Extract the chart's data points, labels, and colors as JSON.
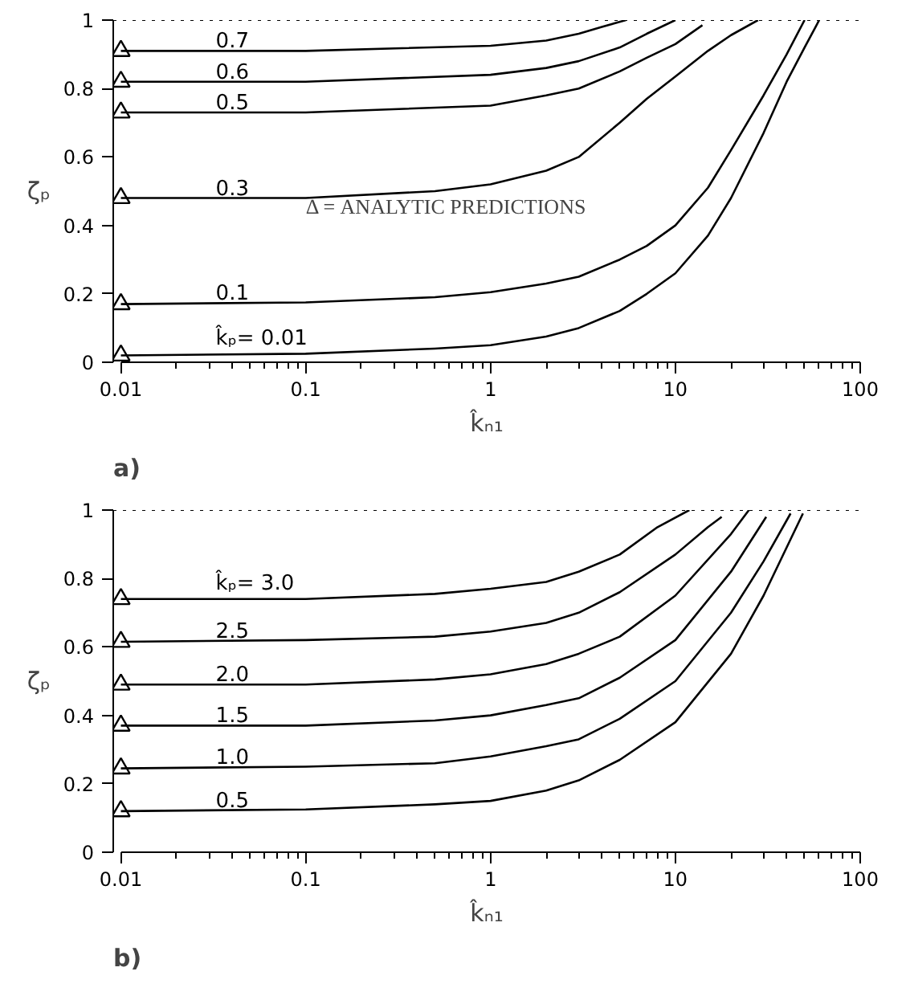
{
  "chart_data": [
    {
      "type": "line",
      "title": "a)",
      "xlabel": "k̂ₙ₁",
      "ylabel": "ζₚ",
      "log": "x",
      "grid": false,
      "marker": "none",
      "line_style": "solid",
      "xlim": [
        0.01,
        100
      ],
      "ylim": [
        0,
        1
      ],
      "xticks": [
        0.01,
        {
          "value": 0.02,
          "label": null
        },
        {
          "value": 0.03,
          "label": null
        },
        {
          "value": 0.04,
          "label": null
        },
        {
          "value": 0.05,
          "label": null
        },
        {
          "value": 0.06,
          "label": null
        },
        {
          "value": 0.07,
          "label": null
        },
        {
          "value": 0.08,
          "label": null
        },
        {
          "value": 0.09,
          "label": null
        },
        0.1,
        {
          "value": 0.2,
          "label": null
        },
        {
          "value": 0.3,
          "label": null
        },
        {
          "value": 0.4,
          "label": null
        },
        {
          "value": 0.5,
          "label": null
        },
        {
          "value": 0.6,
          "label": null
        },
        {
          "value": 0.7,
          "label": null
        },
        {
          "value": 0.8,
          "label": null
        },
        {
          "value": 0.9,
          "label": null
        },
        1,
        {
          "value": 2,
          "label": null
        },
        {
          "value": 3,
          "label": null
        },
        {
          "value": 4,
          "label": null
        },
        {
          "value": 5,
          "label": null
        },
        {
          "value": 6,
          "label": null
        },
        {
          "value": 7,
          "label": null
        },
        {
          "value": 8,
          "label": null
        },
        {
          "value": 9,
          "label": null
        },
        10,
        {
          "value": 20,
          "label": null
        },
        {
          "value": 30,
          "label": null
        },
        {
          "value": 40,
          "label": null
        },
        {
          "value": 50,
          "label": null
        },
        {
          "value": 60,
          "label": null
        },
        {
          "value": 70,
          "label": null
        },
        {
          "value": 80,
          "label": null
        },
        {
          "value": 90,
          "label": null
        },
        100
      ],
      "yticks": [
        0,
        0.2,
        0.4,
        0.6,
        0.8,
        1
      ],
      "ref_lines": [
        {
          "axis": "y",
          "value": 1,
          "line_style": "dotted",
          "color": "#000000"
        }
      ],
      "annotations": [
        "Δ = ANALYTIC PREDICTIONS"
      ],
      "series": [
        {
          "name": "0.7",
          "color": "#000000",
          "x": [
            0.01,
            0.1,
            1,
            2,
            3,
            4,
            5.4
          ],
          "values": [
            0.91,
            0.91,
            0.925,
            0.94,
            0.96,
            0.98,
            1.0
          ]
        },
        {
          "name": "0.6",
          "color": "#000000",
          "x": [
            0.01,
            0.1,
            1,
            2,
            3,
            5,
            7,
            10
          ],
          "values": [
            0.82,
            0.82,
            0.84,
            0.86,
            0.88,
            0.92,
            0.96,
            1.0
          ]
        },
        {
          "name": "0.5",
          "color": "#000000",
          "x": [
            0.01,
            0.1,
            1,
            2,
            3,
            5,
            7,
            10,
            14
          ],
          "values": [
            0.73,
            0.73,
            0.75,
            0.78,
            0.8,
            0.85,
            0.89,
            0.93,
            0.985
          ]
        },
        {
          "name": "0.3",
          "color": "#000000",
          "x": [
            0.01,
            0.1,
            0.5,
            1,
            2,
            3,
            5,
            7,
            10,
            15,
            20,
            28
          ],
          "values": [
            0.48,
            0.48,
            0.5,
            0.52,
            0.56,
            0.6,
            0.7,
            0.77,
            0.835,
            0.91,
            0.956,
            1.0
          ]
        },
        {
          "name": "0.1",
          "color": "#000000",
          "x": [
            0.01,
            0.1,
            0.5,
            1,
            2,
            3,
            5,
            7,
            10,
            15,
            20,
            30,
            40,
            50
          ],
          "values": [
            0.17,
            0.175,
            0.19,
            0.205,
            0.23,
            0.25,
            0.3,
            0.34,
            0.4,
            0.51,
            0.62,
            0.78,
            0.9,
            1.0
          ]
        },
        {
          "name": "k̂ₚ= 0.01",
          "color": "#000000",
          "x": [
            0.01,
            0.1,
            0.5,
            1,
            2,
            3,
            5,
            7,
            10,
            15,
            20,
            30,
            40,
            50,
            60
          ],
          "values": [
            0.02,
            0.025,
            0.04,
            0.05,
            0.075,
            0.1,
            0.15,
            0.2,
            0.26,
            0.37,
            0.48,
            0.67,
            0.82,
            0.92,
            1.0
          ]
        },
        {
          "type": "scatter",
          "marker": "triangle",
          "color": "#000000",
          "x": [
            0.01,
            0.01,
            0.01,
            0.01,
            0.01,
            0.01
          ],
          "values": [
            0.91,
            0.82,
            0.73,
            0.48,
            0.17,
            0.02
          ]
        }
      ]
    },
    {
      "type": "line",
      "title": "b)",
      "xlabel": "k̂ₙ₁",
      "ylabel": "ζₚ",
      "log": "x",
      "grid": false,
      "marker": "none",
      "line_style": "solid",
      "xlim": [
        0.01,
        100
      ],
      "ylim": [
        0,
        1
      ],
      "xticks": [
        0.01,
        {
          "value": 0.02,
          "label": null
        },
        {
          "value": 0.03,
          "label": null
        },
        {
          "value": 0.04,
          "label": null
        },
        {
          "value": 0.05,
          "label": null
        },
        {
          "value": 0.06,
          "label": null
        },
        {
          "value": 0.07,
          "label": null
        },
        {
          "value": 0.08,
          "label": null
        },
        {
          "value": 0.09,
          "label": null
        },
        0.1,
        {
          "value": 0.2,
          "label": null
        },
        {
          "value": 0.3,
          "label": null
        },
        {
          "value": 0.4,
          "label": null
        },
        {
          "value": 0.5,
          "label": null
        },
        {
          "value": 0.6,
          "label": null
        },
        {
          "value": 0.7,
          "label": null
        },
        {
          "value": 0.8,
          "label": null
        },
        {
          "value": 0.9,
          "label": null
        },
        1,
        {
          "value": 2,
          "label": null
        },
        {
          "value": 3,
          "label": null
        },
        {
          "value": 4,
          "label": null
        },
        {
          "value": 5,
          "label": null
        },
        {
          "value": 6,
          "label": null
        },
        {
          "value": 7,
          "label": null
        },
        {
          "value": 8,
          "label": null
        },
        {
          "value": 9,
          "label": null
        },
        10,
        {
          "value": 20,
          "label": null
        },
        {
          "value": 30,
          "label": null
        },
        {
          "value": 40,
          "label": null
        },
        {
          "value": 50,
          "label": null
        },
        {
          "value": 60,
          "label": null
        },
        {
          "value": 70,
          "label": null
        },
        {
          "value": 80,
          "label": null
        },
        {
          "value": 90,
          "label": null
        },
        100
      ],
      "yticks": [
        0,
        0.2,
        0.4,
        0.6,
        0.8,
        1
      ],
      "ref_lines": [
        {
          "axis": "y",
          "value": 1,
          "line_style": "dotted",
          "color": "#000000"
        }
      ],
      "series": [
        {
          "name": "k̂ₚ= 3.0",
          "color": "#000000",
          "x": [
            0.01,
            0.1,
            0.5,
            1,
            2,
            3,
            5,
            8,
            11.9
          ],
          "values": [
            0.74,
            0.74,
            0.755,
            0.77,
            0.79,
            0.82,
            0.87,
            0.95,
            1.0
          ]
        },
        {
          "name": "2.5",
          "color": "#000000",
          "x": [
            0.01,
            0.1,
            0.5,
            1,
            2,
            3,
            5,
            10,
            15,
            17.8
          ],
          "values": [
            0.615,
            0.62,
            0.63,
            0.645,
            0.67,
            0.7,
            0.76,
            0.87,
            0.95,
            0.98
          ]
        },
        {
          "name": "2.0",
          "color": "#000000",
          "x": [
            0.01,
            0.1,
            0.5,
            1,
            2,
            3,
            5,
            10,
            20,
            25
          ],
          "values": [
            0.49,
            0.49,
            0.505,
            0.52,
            0.55,
            0.58,
            0.63,
            0.75,
            0.93,
            1.0
          ]
        },
        {
          "name": "1.5",
          "color": "#000000",
          "x": [
            0.01,
            0.1,
            0.5,
            1,
            2,
            3,
            5,
            10,
            20,
            31
          ],
          "values": [
            0.37,
            0.37,
            0.385,
            0.4,
            0.43,
            0.45,
            0.51,
            0.62,
            0.82,
            0.98
          ]
        },
        {
          "name": "1.0",
          "color": "#000000",
          "x": [
            0.01,
            0.1,
            0.5,
            1,
            2,
            3,
            5,
            10,
            20,
            30,
            42
          ],
          "values": [
            0.245,
            0.25,
            0.26,
            0.28,
            0.31,
            0.33,
            0.39,
            0.5,
            0.7,
            0.85,
            0.99
          ]
        },
        {
          "name": "0.5",
          "color": "#000000",
          "x": [
            0.01,
            0.1,
            0.5,
            1,
            2,
            3,
            5,
            10,
            20,
            30,
            49
          ],
          "values": [
            0.12,
            0.125,
            0.14,
            0.15,
            0.18,
            0.21,
            0.27,
            0.38,
            0.58,
            0.75,
            0.99
          ]
        },
        {
          "type": "scatter",
          "marker": "triangle",
          "color": "#000000",
          "x": [
            0.01,
            0.01,
            0.01,
            0.01,
            0.01,
            0.01
          ],
          "values": [
            0.74,
            0.615,
            0.49,
            0.37,
            0.245,
            0.12
          ]
        }
      ]
    }
  ]
}
